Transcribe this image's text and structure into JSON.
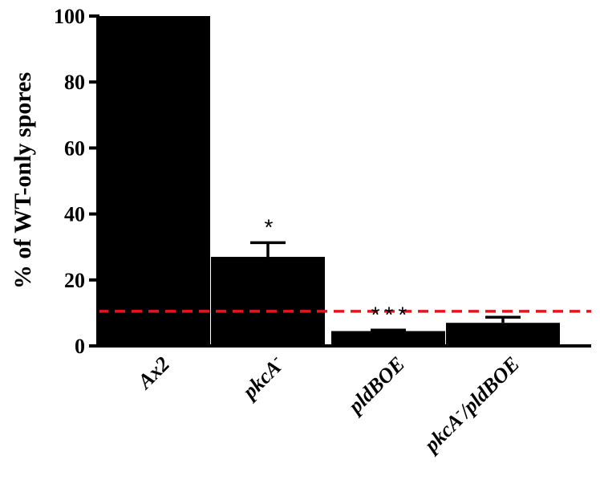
{
  "chart_data": {
    "type": "bar",
    "ylabel": "% of WT-only spores",
    "ylim": [
      0,
      100
    ],
    "yticks": [
      0,
      20,
      40,
      60,
      80,
      100
    ],
    "categories": [
      {
        "id": "ax2",
        "label": "Ax2",
        "italic": false
      },
      {
        "id": "pkca",
        "label": "pkcA",
        "sup": "-",
        "italic": true
      },
      {
        "id": "pldboe",
        "label": "pldBOE",
        "italic": true
      },
      {
        "id": "pkca-pldboe",
        "label": "pkcA",
        "sup": "-",
        "suffix": "/pldBOE",
        "italic": true
      }
    ],
    "values": [
      100,
      27,
      4.5,
      7
    ],
    "errors": [
      0,
      4.3,
      0.3,
      1.7
    ],
    "significance": [
      "",
      "*",
      "***",
      ""
    ],
    "reference_line": {
      "value": 10.5,
      "color": "#e8141b",
      "style": "dashed"
    },
    "bar_color": "#000000",
    "grid": false
  }
}
